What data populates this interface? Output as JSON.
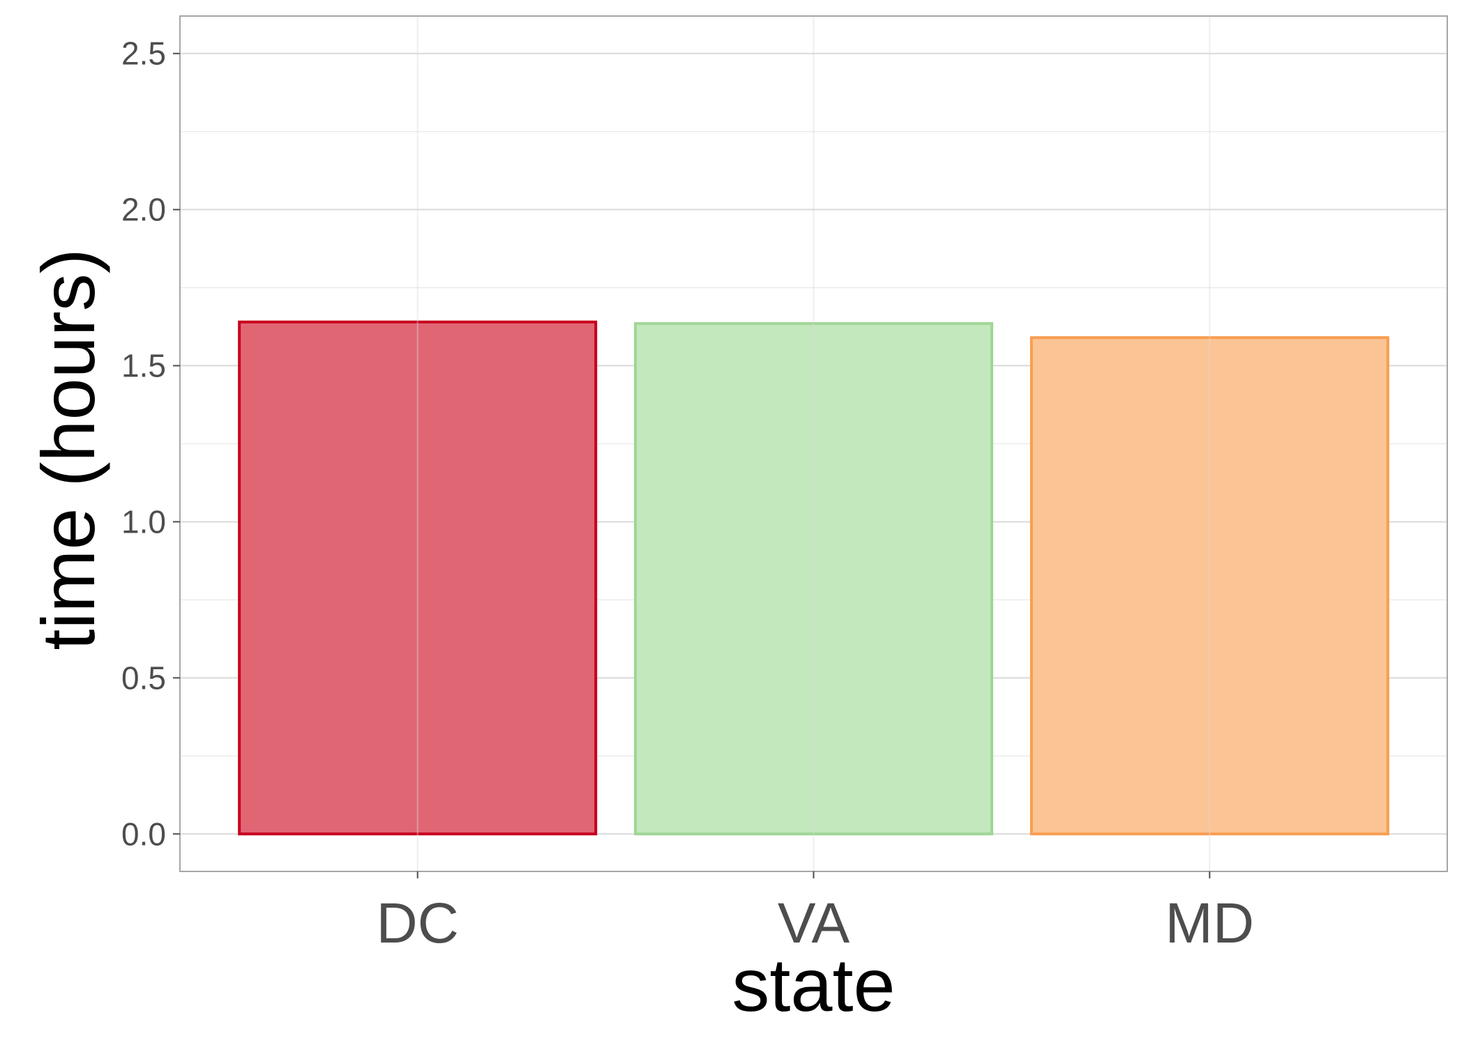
{
  "chart_data": {
    "type": "bar",
    "title": "",
    "xlabel": "state",
    "ylabel": "time (hours)",
    "categories": [
      "DC",
      "VA",
      "MD"
    ],
    "values": [
      1.64,
      1.635,
      1.59
    ],
    "ylim": [
      -0.12,
      2.62
    ],
    "yticks": [
      "0.0",
      "0.5",
      "1.0",
      "1.5",
      "2.0",
      "2.5"
    ],
    "ytick_values": [
      0,
      0.5,
      1.0,
      1.5,
      2.0,
      2.5
    ],
    "grid": true,
    "legend": "none",
    "colors": {
      "fill": [
        "#e06674",
        "#c4e8bd",
        "#fbc495"
      ],
      "stroke": [
        "#c8001c",
        "#9fd795",
        "#f89e50"
      ],
      "grid_major": "#d9d9d9",
      "grid_minor": "#ebebeb",
      "panel_border": "#a6a6a6"
    }
  }
}
